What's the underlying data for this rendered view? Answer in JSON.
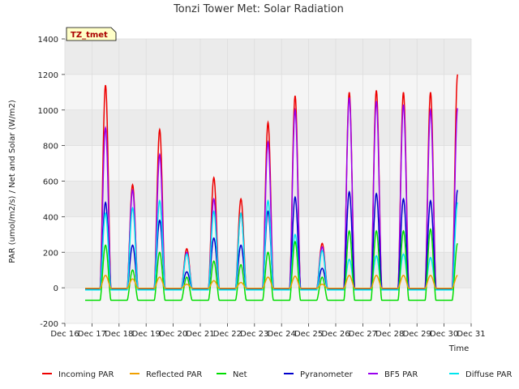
{
  "chart_data": {
    "type": "line",
    "title": "Tonzi Tower Met: Solar Radiation",
    "xlabel": "Time",
    "ylabel": "PAR (umol/m2/s) / Net and Solar (W/m2)",
    "xlim": [
      16,
      31
    ],
    "ylim": [
      -200,
      1400
    ],
    "x_ticks": [
      16,
      17,
      18,
      19,
      20,
      21,
      22,
      23,
      24,
      25,
      26,
      27,
      28,
      29,
      30,
      31
    ],
    "x_tick_labels": [
      "Dec 16",
      "Dec 17",
      "Dec 18",
      "Dec 19",
      "Dec 20",
      "Dec 21",
      "Dec 22",
      "Dec 23",
      "Dec 24",
      "Dec 25",
      "Dec 26",
      "Dec 27",
      "Dec 28",
      "Dec 29",
      "Dec 30",
      "Dec 31"
    ],
    "y_ticks": [
      -200,
      0,
      200,
      400,
      600,
      800,
      1000,
      1200,
      1400
    ],
    "y_tick_labels": [
      "-200",
      "0",
      "200",
      "400",
      "600",
      "800",
      "1000",
      "1200",
      "1400"
    ],
    "grid": true,
    "legend_position": "bottom",
    "tag": "TZ_tmet",
    "data_start": 16.75,
    "data_end": 30.5,
    "days": [
      {
        "day": 17,
        "incoming": 1140,
        "reflected": 70,
        "net": 240,
        "pyranometer": 480,
        "bf5": 900,
        "diffuse": 420
      },
      {
        "day": 18,
        "incoming": 580,
        "reflected": 50,
        "net": 100,
        "pyranometer": 240,
        "bf5": 550,
        "diffuse": 450
      },
      {
        "day": 19,
        "incoming": 890,
        "reflected": 60,
        "net": 200,
        "pyranometer": 380,
        "bf5": 750,
        "diffuse": 490
      },
      {
        "day": 20,
        "incoming": 220,
        "reflected": 20,
        "net": 60,
        "pyranometer": 90,
        "bf5": 200,
        "diffuse": 190
      },
      {
        "day": 21,
        "incoming": 620,
        "reflected": 40,
        "net": 150,
        "pyranometer": 280,
        "bf5": 500,
        "diffuse": 430
      },
      {
        "day": 22,
        "incoming": 500,
        "reflected": 30,
        "net": 130,
        "pyranometer": 240,
        "bf5": 420,
        "diffuse": 420
      },
      {
        "day": 23,
        "incoming": 930,
        "reflected": 60,
        "net": 200,
        "pyranometer": 430,
        "bf5": 820,
        "diffuse": 490
      },
      {
        "day": 24,
        "incoming": 1080,
        "reflected": 65,
        "net": 260,
        "pyranometer": 510,
        "bf5": 1000,
        "diffuse": 300
      },
      {
        "day": 25,
        "incoming": 250,
        "reflected": 20,
        "net": 60,
        "pyranometer": 110,
        "bf5": 230,
        "diffuse": 210
      },
      {
        "day": 26,
        "incoming": 1100,
        "reflected": 70,
        "net": 320,
        "pyranometer": 540,
        "bf5": 1070,
        "diffuse": 160
      },
      {
        "day": 27,
        "incoming": 1110,
        "reflected": 70,
        "net": 320,
        "pyranometer": 530,
        "bf5": 1050,
        "diffuse": 180
      },
      {
        "day": 28,
        "incoming": 1100,
        "reflected": 70,
        "net": 320,
        "pyranometer": 500,
        "bf5": 1030,
        "diffuse": 190
      },
      {
        "day": 29,
        "incoming": 1100,
        "reflected": 70,
        "net": 330,
        "pyranometer": 490,
        "bf5": 1000,
        "diffuse": 170
      },
      {
        "day": 30,
        "incoming": 1200,
        "reflected": 70,
        "net": 250,
        "pyranometer": 550,
        "bf5": 1010,
        "diffuse": 480
      }
    ],
    "night_values": {
      "incoming": -5,
      "reflected": -3,
      "net": -70,
      "pyranometer": -5,
      "bf5": -5,
      "diffuse": -12
    },
    "series": [
      {
        "name": "Incoming PAR",
        "key": "incoming",
        "color": "#ee0000"
      },
      {
        "name": "Reflected PAR",
        "key": "reflected",
        "color": "#f0a000"
      },
      {
        "name": "Net",
        "key": "net",
        "color": "#00dd00"
      },
      {
        "name": "Pyranometer",
        "key": "pyranometer",
        "color": "#0000cc"
      },
      {
        "name": "BF5 PAR",
        "key": "bf5",
        "color": "#9900ee"
      },
      {
        "name": "Diffuse PAR",
        "key": "diffuse",
        "color": "#00e5ee"
      }
    ]
  }
}
